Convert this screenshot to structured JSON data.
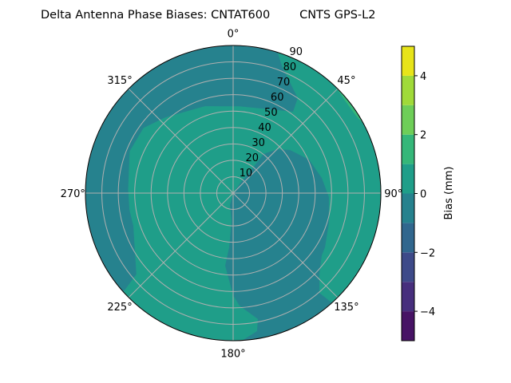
{
  "chart_data": {
    "type": "polar-contour",
    "title": "Delta Antenna Phase Biases: CNTAT600        CNTS GPS-L2",
    "angular_axis": {
      "direction": "clockwise",
      "zero_location": "top",
      "tick_labels": [
        "0°",
        "45°",
        "90°",
        "135°",
        "180°",
        "225°",
        "270°",
        "315°"
      ],
      "tick_values": [
        0,
        45,
        90,
        135,
        180,
        225,
        270,
        315
      ]
    },
    "radial_axis": {
      "range": [
        0,
        90
      ],
      "tick_values": [
        10,
        20,
        30,
        40,
        50,
        60,
        70,
        80,
        90
      ],
      "tick_labels": [
        "10",
        "20",
        "30",
        "40",
        "50",
        "60",
        "70",
        "80",
        "90"
      ],
      "label_angle": 22.5
    },
    "grid": true,
    "grid_color": "#b0b0b0",
    "colorbar": {
      "label": "Bias (mm)",
      "levels": [
        -5,
        -4,
        -3,
        -2,
        -1,
        0,
        1,
        2,
        3,
        4,
        5
      ],
      "colors": [
        "#471365",
        "#472f7d",
        "#3e4a89",
        "#31678e",
        "#26828e",
        "#1f9e89",
        "#35b779",
        "#6ece58",
        "#a0da39",
        "#e7e419"
      ],
      "tick_values": [
        -4,
        -2,
        0,
        2,
        4
      ],
      "tick_labels": [
        "−4",
        "−2",
        "0",
        "2",
        "4"
      ],
      "placement": "right"
    },
    "background_band": [
      0,
      1
    ],
    "regions": [
      {
        "band": [
          -1,
          0
        ],
        "description_points_az_zenith": [
          [
            228,
            90
          ],
          [
            230,
            77
          ],
          [
            251.8,
            64
          ],
          [
            260.8,
            64
          ],
          [
            272,
            64
          ],
          [
            292,
            68
          ],
          [
            306,
            67.5
          ],
          [
            318,
            62
          ],
          [
            342,
            55.7
          ],
          [
            4.2,
            53
          ],
          [
            36.3,
            61.6
          ],
          [
            34.2,
            70
          ],
          [
            27,
            76
          ],
          [
            21,
            83
          ],
          [
            17.5,
            90
          ]
        ]
      },
      {
        "band": [
          -1,
          0
        ],
        "description_points_az_zenith": [
          [
            184.2,
            33.2
          ],
          [
            183.3,
            17
          ],
          [
            195,
            7.5
          ],
          [
            0,
            0
          ],
          [
            35.5,
            8.4
          ],
          [
            38,
            19.8
          ],
          [
            37.8,
            30.2
          ],
          [
            45,
            37.8
          ],
          [
            52.7,
            43.4
          ],
          [
            66.1,
            50.5
          ],
          [
            80.3,
            54.8
          ],
          [
            92.4,
            58.4
          ],
          [
            107.6,
            61.2
          ],
          [
            120.6,
            65
          ],
          [
            125.1,
            66
          ],
          [
            133.1,
            72
          ],
          [
            139.2,
            80.4
          ],
          [
            138,
            90
          ],
          [
            176.5,
            90
          ],
          [
            170.2,
            85.4
          ],
          [
            168.9,
            78.3
          ],
          [
            176.8,
            68.7
          ],
          [
            180,
            62.3
          ],
          [
            186.3,
            44.5
          ]
        ]
      },
      {
        "band": [
          1,
          2
        ],
        "description_points_az_zenith": [
          [
            44,
            90
          ],
          [
            50,
            88.5
          ],
          [
            58,
            88.5
          ],
          [
            62,
            90
          ]
        ]
      }
    ]
  }
}
